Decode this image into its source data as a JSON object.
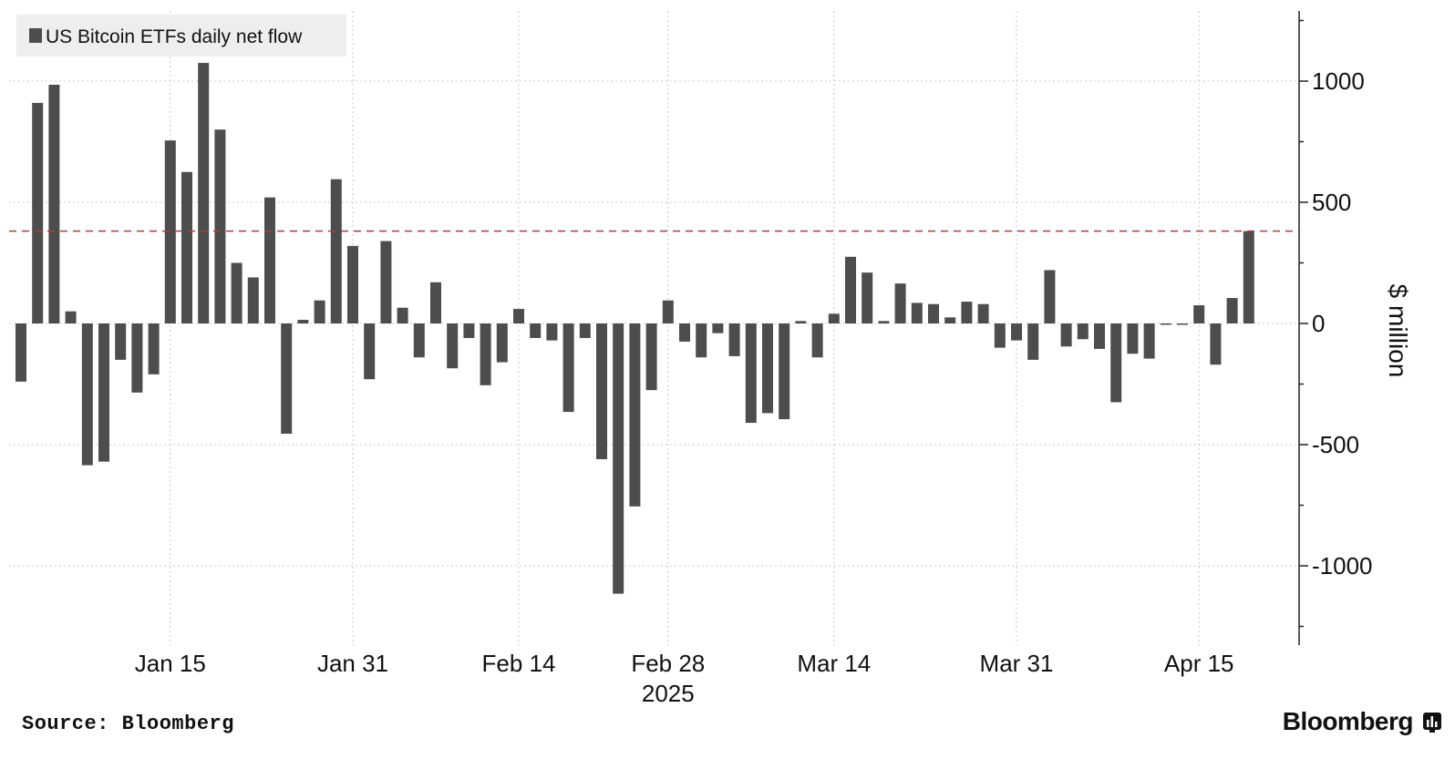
{
  "chart_data": {
    "type": "bar",
    "legend": {
      "label": "US Bitcoin ETFs daily net flow",
      "position": "top-left"
    },
    "ylabel": "$ million",
    "ylim": [
      -1320,
      1270
    ],
    "yticks": [
      1000,
      500,
      0,
      -500,
      -1000
    ],
    "ytick_labels": [
      "1000",
      "500",
      "0",
      "-500",
      "-1000"
    ],
    "xticks": [
      {
        "label": "Jan 15",
        "index": 9
      },
      {
        "label": "Jan 31",
        "index": 20
      },
      {
        "label": "Feb 14",
        "index": 30
      },
      {
        "label": "Feb 28",
        "index": 39,
        "sublabel": "2025"
      },
      {
        "label": "Mar 14",
        "index": 49
      },
      {
        "label": "Mar 31",
        "index": 60
      },
      {
        "label": "Apr 15",
        "index": 71
      }
    ],
    "reference_line": {
      "value": 381,
      "color": "#b03a3a"
    },
    "bar_color": "#4d4d4d",
    "grid": true,
    "values": [
      -240,
      910,
      985,
      50,
      -585,
      -570,
      -150,
      -285,
      -210,
      755,
      625,
      1075,
      800,
      250,
      190,
      520,
      -455,
      15,
      95,
      595,
      320,
      -230,
      340,
      65,
      -140,
      170,
      -185,
      -60,
      -255,
      -160,
      60,
      -60,
      -70,
      -365,
      -60,
      -560,
      -1115,
      -755,
      -275,
      95,
      -75,
      -140,
      -40,
      -135,
      -410,
      -370,
      -395,
      10,
      -140,
      40,
      275,
      210,
      10,
      165,
      85,
      80,
      25,
      90,
      80,
      -100,
      -70,
      -150,
      220,
      -95,
      -65,
      -105,
      -325,
      -125,
      -145,
      -5,
      -5,
      75,
      -170,
      105,
      381
    ]
  },
  "source_label": "Source: Bloomberg",
  "brand": {
    "name": "Bloomberg",
    "icon": "bloomberg-terminal-icon"
  }
}
